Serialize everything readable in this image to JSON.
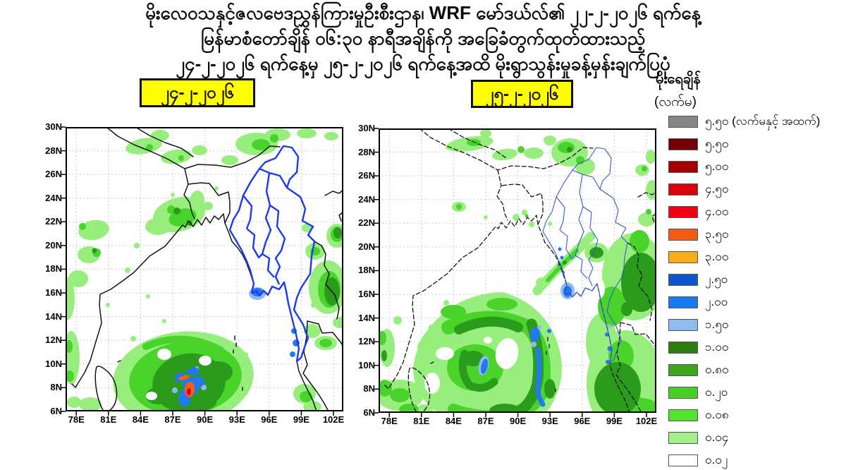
{
  "title": {
    "line1": "မိုးလေဝသနှင့်ဇလဗေဒညွှန်ကြားမှုဦးစီးဌာန၊ WRF မော်ဒယ်လ်၏ ၂၂-၂-၂၀၂၆ ရက်နေ့",
    "line2": "မြန်မာစံတော်ချိန် ၀၆:၃၀ နာရီအချိန်ကို အခြေခံတွက်ထုတ်ထားသည့်",
    "line3": "၂၄-၂-၂၀၂၆ ရက်နေ့မှ ၂၅-၂-၂၀၂၆ ရက်နေ့အထိ မိုးရွာသွန်းမှုခန့်မှန်းချက်ပြပုံ"
  },
  "panels": {
    "left_date_label": "၂၄-၂-၂၀၂၆",
    "right_date_label": "၂၅-၂-၂၀၂၆",
    "date_label_bg": "#ffff00"
  },
  "maps": {
    "lon_ticks": [
      "78E",
      "81E",
      "84E",
      "87E",
      "90E",
      "93E",
      "96E",
      "99E",
      "102E"
    ],
    "lat_ticks": [
      "30N",
      "28N",
      "26N",
      "24N",
      "22N",
      "20N",
      "18N",
      "16N",
      "14N",
      "12N",
      "10N",
      "8N",
      "6N"
    ],
    "lon_range_deg_e": [
      77,
      103
    ],
    "lat_range_deg_n": [
      6,
      30
    ],
    "colors": {
      "rain_light_green": "#97ee7d",
      "rain_green": "#49d32b",
      "rain_dark_green": "#2b9b1c",
      "rain_light_blue": "#8fbbef",
      "rain_blue": "#2478f0",
      "rain_orange": "#f26018",
      "rain_red": "#e2000f",
      "myanmar_boundary_left": "#1a3af0",
      "myanmar_boundary_right": "#3a55dd",
      "coastline": "#141414"
    }
  },
  "legend": {
    "title": "မိုးရေချိန်",
    "unit": "(လက်မ)",
    "items": [
      {
        "color": "#868686",
        "label": "၅.၅၀ (လက်မနှင့် အထက်)"
      },
      {
        "color": "#740007",
        "label": "၅.၅၀"
      },
      {
        "color": "#a60007",
        "label": "၅.၀၀"
      },
      {
        "color": "#d9000e",
        "label": "၄.၅၀"
      },
      {
        "color": "#f00013",
        "label": "၄.၀၀"
      },
      {
        "color": "#f25b11",
        "label": "၃.၅၀"
      },
      {
        "color": "#f8ac18",
        "label": "၃.၀၀"
      },
      {
        "color": "#0d56cd",
        "label": "၂.၅၀"
      },
      {
        "color": "#1879f2",
        "label": "၂.၀၀"
      },
      {
        "color": "#8fbbef",
        "label": "၁.၅၀"
      },
      {
        "color": "#2c7c10",
        "label": "၁.၀၀"
      },
      {
        "color": "#3fa31d",
        "label": "၀.၈၀"
      },
      {
        "color": "#47cf28",
        "label": "၀.၂၀"
      },
      {
        "color": "#52e52e",
        "label": "၀.၀၈"
      },
      {
        "color": "#a5ee8e",
        "label": "၀.၀၄"
      },
      {
        "color": "#ffffff",
        "label": "၀.၀၂"
      }
    ]
  }
}
